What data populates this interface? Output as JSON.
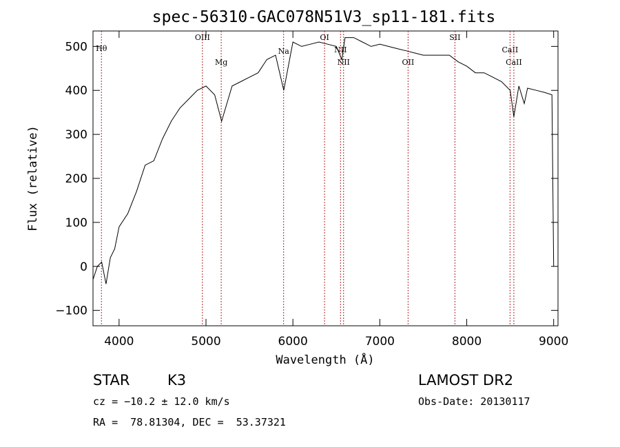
{
  "chart_data": {
    "type": "line",
    "title": "spec-56310-GAC078N51V3_sp11-181.fits",
    "xlabel": "Wavelength (Å)",
    "ylabel": "Flux (relative)",
    "xlim": [
      3700,
      9050
    ],
    "ylim": [
      -135,
      535
    ],
    "xticks": [
      4000,
      5000,
      6000,
      7000,
      8000,
      9000
    ],
    "yticks": [
      -100,
      0,
      100,
      200,
      300,
      400,
      500
    ],
    "x": [
      3700,
      3750,
      3800,
      3850,
      3900,
      3950,
      4000,
      4100,
      4200,
      4300,
      4400,
      4500,
      4600,
      4700,
      4800,
      4900,
      5000,
      5100,
      5180,
      5300,
      5400,
      5500,
      5600,
      5700,
      5800,
      5895,
      6000,
      6100,
      6200,
      6300,
      6400,
      6500,
      6563,
      6600,
      6700,
      6800,
      6900,
      7000,
      7100,
      7200,
      7300,
      7400,
      7500,
      7600,
      7700,
      7800,
      7900,
      8000,
      8100,
      8200,
      8300,
      8400,
      8500,
      8542,
      8600,
      8662,
      8700,
      8800,
      8900,
      8980,
      9000
    ],
    "y": [
      -30,
      0,
      10,
      -40,
      20,
      40,
      90,
      120,
      170,
      230,
      240,
      290,
      330,
      360,
      380,
      400,
      410,
      390,
      330,
      410,
      420,
      430,
      440,
      470,
      480,
      400,
      510,
      500,
      505,
      510,
      505,
      500,
      470,
      520,
      520,
      510,
      500,
      505,
      500,
      495,
      490,
      485,
      480,
      480,
      480,
      480,
      465,
      455,
      440,
      440,
      430,
      420,
      400,
      340,
      410,
      370,
      405,
      400,
      395,
      390,
      0
    ],
    "spectral_lines": [
      {
        "name": "Hθ",
        "wavelength": 3797
      },
      {
        "name": "OIII",
        "wavelength": 4959
      },
      {
        "name": "Mg",
        "wavelength": 5175
      },
      {
        "name": "Na",
        "wavelength": 5893
      },
      {
        "name": "OI",
        "wavelength": 6364
      },
      {
        "name": "NII",
        "wavelength": 6548
      },
      {
        "name": "NII",
        "wavelength": 6583
      },
      {
        "name": "OII",
        "wavelength": 7325
      },
      {
        "name": "SII",
        "wavelength": 7864
      },
      {
        "name": "CaII",
        "wavelength": 8498
      },
      {
        "name": "CaII",
        "wavelength": 8542
      }
    ],
    "grid": false
  },
  "colors": {
    "spectrum": "#000000",
    "line_markers": "#b22222"
  },
  "info": {
    "object_class": "STAR",
    "subclass": "K3",
    "survey": "LAMOST DR2",
    "cz": "cz = −10.2 ± 12.0 km/s",
    "obs_date": "Obs-Date: 20130117",
    "coords": "RA =  78.81304, DEC =  53.37321"
  }
}
